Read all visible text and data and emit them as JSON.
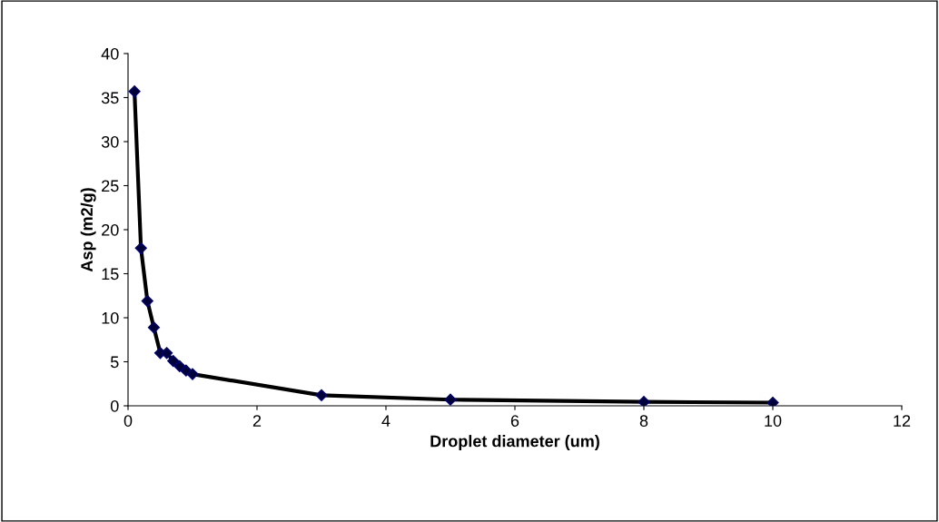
{
  "chart_data": {
    "type": "line",
    "xlabel": "Droplet diameter (um)",
    "ylabel": "Asp (m2/g)",
    "series": [
      {
        "color": "#000000",
        "x": [
          0.1,
          0.2,
          0.3,
          0.4,
          0.5,
          0.6,
          0.7,
          0.8,
          0.9,
          1.0,
          3,
          5,
          8,
          10
        ],
        "values": [
          35.7,
          17.9,
          11.9,
          8.9,
          6.0,
          6.0,
          5.1,
          4.5,
          4.0,
          3.6,
          1.2,
          0.7,
          0.45,
          0.36
        ]
      }
    ],
    "marker": "diamond",
    "line_style": "solid",
    "grid": false,
    "legend": false,
    "xlim": [
      0,
      12
    ],
    "xticks": [
      0,
      2,
      4,
      6,
      8,
      10,
      12
    ],
    "ylim": [
      0,
      40
    ],
    "yticks": [
      0,
      5,
      10,
      15,
      20,
      25,
      30,
      35,
      40
    ]
  }
}
